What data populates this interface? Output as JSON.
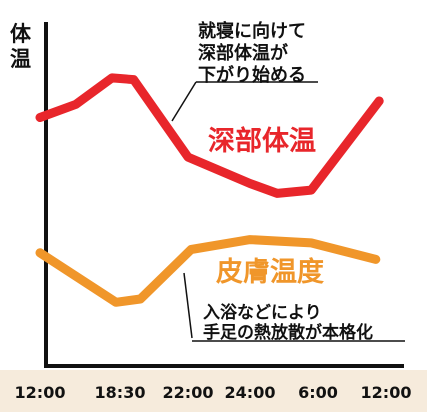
{
  "colors": {
    "deep_body": "#e8262b",
    "skin": "#f0962a",
    "axis": "#111111",
    "band": "#f6ebdc",
    "note": "#111111"
  },
  "chart_data": {
    "type": "line",
    "ylabel": [
      "体",
      "温"
    ],
    "xlabel": "",
    "x": [
      "12:00",
      "18:30",
      "22:00",
      "24:00",
      "6:00",
      "12:00"
    ],
    "y_scale": "relative (no numeric ticks shown)",
    "ylim": [
      0,
      100
    ],
    "grid": false,
    "legend": "inline labels next to lines",
    "series": [
      {
        "name": "深部体温",
        "color": "#e8262b",
        "points": [
          {
            "x": 0,
            "y": 75
          },
          {
            "x": 0.45,
            "y": 79
          },
          {
            "x": 0.9,
            "y": 87
          },
          {
            "x": 1.2,
            "y": 86.5
          },
          {
            "x": 2.0,
            "y": 63
          },
          {
            "x": 3.0,
            "y": 55
          },
          {
            "x": 3.4,
            "y": 52
          },
          {
            "x": 3.9,
            "y": 53
          },
          {
            "x": 4.9,
            "y": 80
          }
        ]
      },
      {
        "name": "皮膚温度",
        "color": "#f0962a",
        "points": [
          {
            "x": 0,
            "y": 34
          },
          {
            "x": 0.95,
            "y": 19
          },
          {
            "x": 1.3,
            "y": 20
          },
          {
            "x": 2.05,
            "y": 35
          },
          {
            "x": 3.0,
            "y": 38
          },
          {
            "x": 3.9,
            "y": 37
          },
          {
            "x": 4.85,
            "y": 32
          }
        ]
      }
    ],
    "annotations": [
      {
        "id": "deep-note",
        "lines": [
          "就寝に向けて",
          "深部体温が",
          "下がり始める"
        ]
      },
      {
        "id": "skin-note",
        "lines": [
          "入浴などにより",
          "手足の熱放散が本格化"
        ]
      }
    ]
  }
}
